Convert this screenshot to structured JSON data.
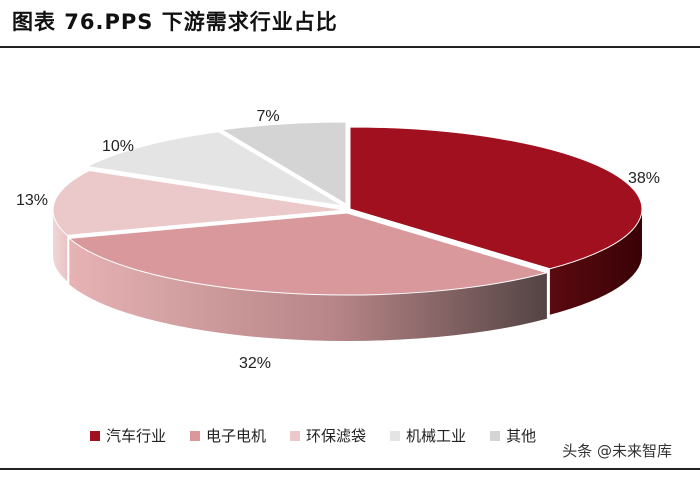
{
  "header": {
    "title": "图表 76.PPS 下游需求行业占比"
  },
  "chart_data": {
    "type": "pie",
    "title": "图表 76.PPS 下游需求行业占比",
    "categories": [
      "汽车行业",
      "电子电机",
      "环保滤袋",
      "机械工业",
      "其他"
    ],
    "values": [
      38,
      32,
      13,
      10,
      7
    ],
    "labels": [
      "38%",
      "32%",
      "13%",
      "10%",
      "7%"
    ],
    "colors": [
      "#A0101E",
      "#D9999C",
      "#EBC9CB",
      "#E4E4E4",
      "#D4D4D4"
    ],
    "style": "3d-exploded",
    "legend_position": "bottom"
  },
  "watermark": {
    "text": "头条 @未来智库"
  }
}
